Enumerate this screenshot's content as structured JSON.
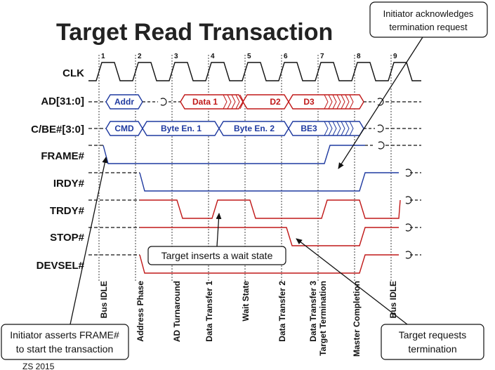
{
  "title": "Target Read Transaction",
  "cycle_numbers": [
    "1",
    "2",
    "3",
    "4",
    "5",
    "6",
    "7",
    "8",
    "9"
  ],
  "signals": [
    "CLK",
    "AD[31:0]",
    "C/BE#[3:0]",
    "FRAME#",
    "IRDY#",
    "TRDY#",
    "STOP#",
    "DEVSEL#"
  ],
  "ad_labels": {
    "addr": "Addr",
    "data1": "Data 1",
    "d2": "D2",
    "d3": "D3"
  },
  "cbe_labels": {
    "cmd": "CMD",
    "be1": "Byte En. 1",
    "be2": "Byte En. 2",
    "be3": "BE3"
  },
  "phases": [
    "Bus IDLE",
    "Address Phase",
    "AD Turnaround",
    "Data Transfer 1",
    "Wait State",
    "Data Transfer 2",
    "Data Transfer 3",
    "Target Termination",
    "Master Completion",
    "Bus IDLE"
  ],
  "callouts": {
    "initiator_ack_line1": "Initiator acknowledges",
    "initiator_ack_line2": "termination request",
    "wait_state": "Target inserts a wait state",
    "frame_line1": "Initiator asserts FRAME#",
    "frame_line2": "to start the transaction",
    "stop_line1": "Target requests",
    "stop_line2": "termination"
  },
  "footer": "ZS 2015",
  "colors": {
    "initiator": "#1f3aa0",
    "target": "#c01818",
    "neutral": "#111111"
  }
}
